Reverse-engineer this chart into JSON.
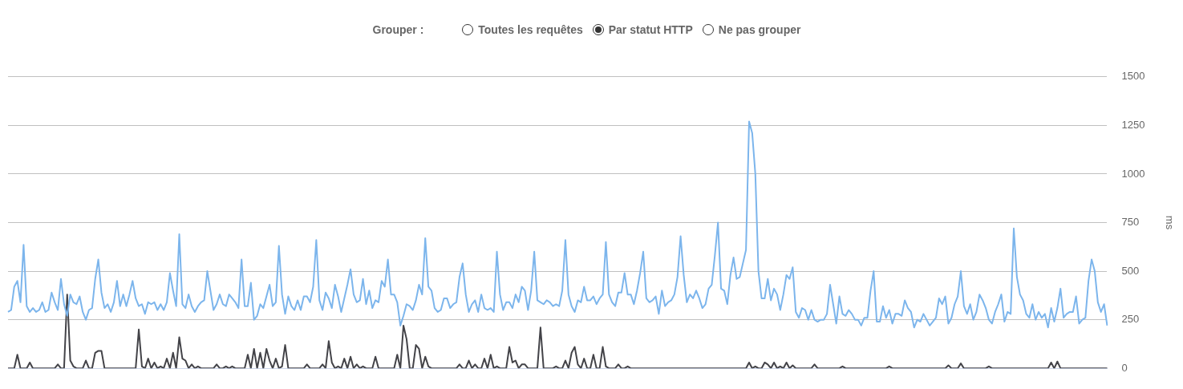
{
  "chart_data": {
    "type": "line",
    "annotations": [
      "Grouper :",
      "Toutes les requêtes",
      "Par statut HTTP",
      "Ne pas grouper"
    ],
    "ylabel": "ms",
    "ylim": [
      0,
      1500
    ],
    "yticks": [
      0,
      250,
      500,
      750,
      1000,
      1250,
      1500
    ],
    "grid": "y",
    "legend": false,
    "marker": "none",
    "line_style": "solid",
    "categories": [
      null,
      null,
      null,
      null,
      null,
      null,
      null,
      null,
      null,
      null,
      null,
      null,
      null,
      null,
      null,
      null,
      null,
      null,
      null,
      null,
      null,
      null,
      null,
      null,
      null,
      null,
      null,
      null,
      null,
      null,
      null,
      null,
      null,
      null,
      null,
      null,
      null,
      null,
      null,
      null,
      null,
      null,
      null,
      null,
      null,
      null,
      null,
      null,
      null,
      null,
      null,
      null,
      null,
      null,
      null,
      null,
      null,
      null,
      null,
      null,
      null,
      null,
      null,
      null,
      null,
      null,
      null,
      null,
      null,
      null,
      null,
      null,
      null,
      null,
      null,
      null,
      null,
      null,
      null,
      null,
      null,
      null,
      null,
      null,
      null,
      null,
      null,
      null,
      null,
      null,
      null,
      null,
      null,
      null,
      null,
      null,
      null,
      null,
      null,
      null,
      null,
      null,
      null,
      null,
      null,
      null,
      null,
      null,
      null,
      null,
      null,
      null,
      null,
      null,
      null,
      null,
      null,
      null,
      null,
      null,
      null,
      null,
      null,
      null,
      null,
      null,
      null,
      null,
      null,
      null,
      null,
      null,
      null,
      null,
      null,
      null,
      null,
      null,
      null,
      null,
      null,
      null,
      null,
      null,
      null,
      null,
      null,
      null,
      null,
      null,
      null,
      null,
      null,
      null,
      null,
      null,
      null,
      null,
      null,
      null,
      null,
      null,
      null,
      null,
      null,
      null,
      null,
      null,
      null,
      null,
      null,
      null,
      null,
      null,
      null,
      null,
      null,
      null,
      null,
      null,
      null,
      null,
      null,
      null,
      null,
      null,
      null,
      null,
      null,
      null,
      null,
      null,
      null,
      null,
      null,
      null,
      null,
      null,
      null,
      null,
      null,
      null,
      null,
      null,
      null,
      null,
      null,
      null,
      null,
      null,
      null,
      null,
      null,
      null,
      null,
      null,
      null,
      null,
      null,
      null,
      null,
      null,
      null,
      null,
      null,
      null,
      null,
      null,
      null,
      null,
      null,
      null,
      null,
      null,
      null,
      null,
      null,
      null,
      null,
      null,
      null,
      null,
      null,
      null,
      null,
      null,
      null,
      null,
      null,
      null,
      null,
      null,
      null,
      null,
      null,
      null,
      null,
      null,
      null,
      null,
      null,
      null,
      null,
      null,
      null,
      null,
      null,
      null,
      null,
      null,
      null,
      null,
      null,
      null,
      null,
      null,
      null,
      null,
      null,
      null,
      null,
      null,
      null,
      null,
      null,
      null,
      null,
      null,
      null,
      null,
      null,
      null,
      null,
      null,
      null,
      null,
      null,
      null,
      null,
      null,
      null,
      null,
      null,
      null,
      null,
      null,
      null,
      null,
      null,
      null,
      null,
      null,
      null,
      null,
      null,
      null,
      null,
      null,
      null,
      null,
      null,
      null,
      null,
      null,
      null,
      null,
      null,
      null,
      null,
      null,
      null,
      null,
      null,
      null,
      null,
      null,
      null,
      null,
      null,
      null,
      null,
      null,
      null,
      null,
      null,
      null,
      null,
      null,
      null,
      null,
      null,
      null,
      null,
      null
    ],
    "series": [
      {
        "color": "#7cb5ec",
        "values": [
          290,
          300,
          420,
          450,
          340,
          635,
          320,
          290,
          310,
          290,
          300,
          340,
          290,
          300,
          390,
          340,
          300,
          460,
          330,
          270,
          380,
          340,
          330,
          370,
          290,
          250,
          300,
          310,
          460,
          560,
          390,
          310,
          330,
          290,
          340,
          450,
          320,
          380,
          320,
          380,
          450,
          360,
          320,
          330,
          280,
          340,
          330,
          340,
          300,
          330,
          300,
          340,
          490,
          400,
          320,
          690,
          330,
          310,
          380,
          320,
          290,
          320,
          340,
          350,
          500,
          400,
          300,
          330,
          380,
          330,
          320,
          380,
          360,
          340,
          310,
          560,
          320,
          320,
          440,
          250,
          270,
          330,
          310,
          370,
          430,
          320,
          340,
          630,
          380,
          280,
          370,
          320,
          300,
          350,
          300,
          370,
          370,
          340,
          420,
          660,
          350,
          300,
          390,
          360,
          310,
          430,
          370,
          290,
          360,
          430,
          510,
          380,
          340,
          350,
          460,
          330,
          400,
          310,
          350,
          340,
          450,
          420,
          560,
          380,
          380,
          340,
          220,
          270,
          330,
          320,
          300,
          350,
          430,
          380,
          670,
          420,
          400,
          310,
          290,
          300,
          360,
          360,
          310,
          330,
          340,
          470,
          540,
          380,
          290,
          330,
          350,
          290,
          380,
          310,
          300,
          310,
          290,
          600,
          380,
          300,
          340,
          340,
          310,
          380,
          340,
          420,
          400,
          300,
          400,
          600,
          350,
          340,
          330,
          350,
          340,
          320,
          330,
          320,
          400,
          660,
          380,
          320,
          290,
          350,
          340,
          420,
          350,
          350,
          370,
          330,
          360,
          380,
          650,
          380,
          340,
          320,
          390,
          390,
          490,
          380,
          380,
          330,
          400,
          490,
          600,
          360,
          340,
          350,
          370,
          280,
          400,
          320,
          340,
          350,
          380,
          470,
          680,
          480,
          340,
          380,
          360,
          400,
          360,
          310,
          330,
          410,
          430,
          580,
          750,
          410,
          400,
          330,
          480,
          570,
          460,
          470,
          540,
          610,
          1270,
          1210,
          1000,
          500,
          360,
          360,
          460,
          350,
          410,
          380,
          300,
          380,
          480,
          460,
          520,
          290,
          260,
          310,
          300,
          250,
          300,
          250,
          240,
          250,
          250,
          280,
          430,
          330,
          230,
          370,
          280,
          270,
          300,
          280,
          250,
          250,
          220,
          260,
          260,
          400,
          500,
          240,
          240,
          320,
          260,
          300,
          230,
          280,
          280,
          270,
          350,
          310,
          290,
          210,
          250,
          240,
          280,
          250,
          220,
          240,
          260,
          360,
          330,
          370,
          230,
          260,
          330,
          370,
          500,
          320,
          280,
          330,
          250,
          290,
          380,
          350,
          310,
          250,
          230,
          290,
          330,
          380,
          240,
          290,
          280,
          720,
          470,
          380,
          350,
          280,
          260,
          330,
          250,
          290,
          260,
          280,
          210,
          310,
          240,
          310,
          410,
          260,
          280,
          290,
          290,
          370,
          230,
          250,
          260,
          450,
          560,
          500,
          340,
          290,
          330,
          220
        ]
      },
      {
        "color": "#434348",
        "values": [
          0,
          0,
          0,
          70,
          0,
          0,
          0,
          30,
          0,
          0,
          0,
          0,
          0,
          0,
          0,
          0,
          20,
          0,
          0,
          380,
          40,
          10,
          0,
          0,
          0,
          40,
          0,
          0,
          80,
          90,
          90,
          0,
          0,
          0,
          0,
          0,
          0,
          0,
          0,
          0,
          0,
          0,
          200,
          10,
          0,
          50,
          0,
          30,
          0,
          10,
          0,
          50,
          0,
          80,
          0,
          160,
          50,
          40,
          0,
          20,
          0,
          10,
          0,
          0,
          0,
          0,
          0,
          20,
          0,
          0,
          10,
          0,
          10,
          0,
          0,
          0,
          0,
          70,
          0,
          100,
          0,
          80,
          0,
          100,
          40,
          0,
          50,
          0,
          10,
          120,
          0,
          0,
          0,
          0,
          0,
          0,
          20,
          0,
          0,
          0,
          0,
          20,
          0,
          140,
          30,
          0,
          10,
          0,
          50,
          0,
          60,
          0,
          20,
          0,
          10,
          0,
          0,
          0,
          60,
          0,
          0,
          0,
          0,
          0,
          0,
          70,
          0,
          220,
          150,
          0,
          0,
          120,
          100,
          0,
          60,
          10,
          0,
          0,
          0,
          0,
          0,
          0,
          0,
          0,
          0,
          20,
          0,
          0,
          40,
          0,
          20,
          0,
          0,
          50,
          0,
          70,
          0,
          10,
          0,
          0,
          0,
          110,
          30,
          40,
          0,
          20,
          20,
          0,
          0,
          0,
          0,
          210,
          0,
          0,
          0,
          0,
          10,
          0,
          0,
          40,
          0,
          80,
          110,
          20,
          0,
          50,
          0,
          0,
          70,
          0,
          0,
          110,
          10,
          0,
          0,
          0,
          20,
          0,
          0,
          10,
          0,
          0,
          0,
          0,
          0,
          0,
          0,
          0,
          0,
          0,
          0,
          0,
          0,
          0,
          0,
          0,
          0,
          0,
          0,
          0,
          0,
          0,
          0,
          0,
          0,
          0,
          0,
          0,
          0,
          0,
          0,
          0,
          0,
          0,
          0,
          0,
          0,
          0,
          30,
          0,
          10,
          0,
          0,
          30,
          20,
          0,
          30,
          0,
          10,
          0,
          30,
          0,
          15,
          0,
          0,
          0,
          0,
          0,
          0,
          20,
          0,
          0,
          0,
          0,
          0,
          0,
          0,
          0,
          10,
          0,
          0,
          0,
          0,
          0,
          0,
          0,
          0,
          0,
          0,
          0,
          0,
          0,
          0,
          10,
          0,
          0,
          0,
          0,
          0,
          0,
          0,
          0,
          0,
          0,
          0,
          0,
          0,
          0,
          0,
          0,
          0,
          0,
          15,
          0,
          0,
          0,
          25,
          0,
          0,
          0,
          0,
          0,
          0,
          0,
          0,
          10,
          0,
          0,
          0,
          0,
          0,
          0,
          0,
          0,
          0,
          0,
          0,
          0,
          0,
          0,
          0,
          0,
          0,
          0,
          0,
          30,
          0,
          35,
          0,
          0,
          0,
          0,
          0,
          0,
          0,
          0,
          0,
          0,
          0,
          0,
          0,
          0,
          0,
          0
        ]
      }
    ]
  }
}
